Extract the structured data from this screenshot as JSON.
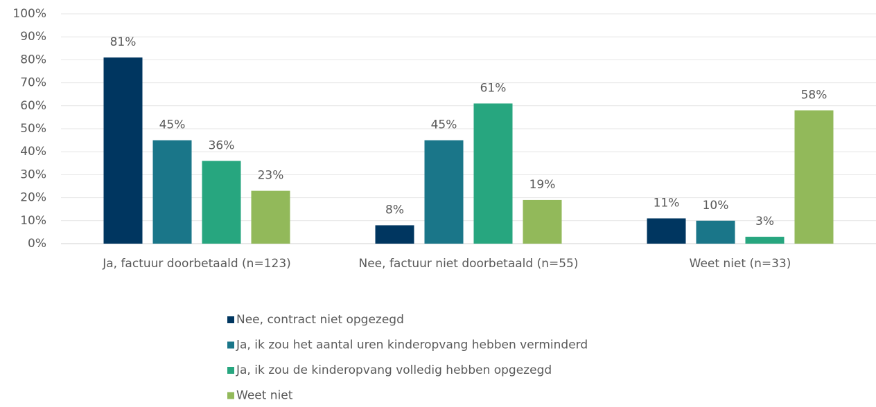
{
  "chart_data": {
    "type": "bar",
    "categories": [
      "Ja, factuur doorbetaald (n=123)",
      "Nee, factuur niet doorbetaald (n=55)",
      "Weet niet (n=33)"
    ],
    "series": [
      {
        "name": "Nee, contract niet opgezegd",
        "color": "#003660",
        "values": [
          81,
          8,
          11
        ],
        "value_labels": [
          "81%",
          "8%",
          "11%"
        ]
      },
      {
        "name": "Ja, ik zou het aantal uren kinderopvang hebben verminderd",
        "color": "#1a7689",
        "values": [
          45,
          45,
          10
        ],
        "value_labels": [
          "45%",
          "45%",
          "10%"
        ]
      },
      {
        "name": "Ja, ik zou de kinderopvang volledig hebben opgezegd",
        "color": "#27a67f",
        "values": [
          36,
          61,
          3
        ],
        "value_labels": [
          "36%",
          "61%",
          "3%"
        ]
      },
      {
        "name": "Weet niet",
        "color": "#92b95a",
        "values": [
          23,
          19,
          58
        ],
        "value_labels": [
          "23%",
          "19%",
          "58%"
        ]
      }
    ],
    "ylim": [
      0,
      100
    ],
    "yticks": [
      {
        "value": 0,
        "label": "0%"
      },
      {
        "value": 10,
        "label": "10%"
      },
      {
        "value": 20,
        "label": "20%"
      },
      {
        "value": 30,
        "label": "30%"
      },
      {
        "value": 40,
        "label": "40%"
      },
      {
        "value": 50,
        "label": "50%"
      },
      {
        "value": 60,
        "label": "60%"
      },
      {
        "value": 70,
        "label": "70%"
      },
      {
        "value": 80,
        "label": "80%"
      },
      {
        "value": 90,
        "label": "90%"
      },
      {
        "value": 100,
        "label": "100%"
      }
    ],
    "grid": true,
    "legend": "bottom"
  }
}
